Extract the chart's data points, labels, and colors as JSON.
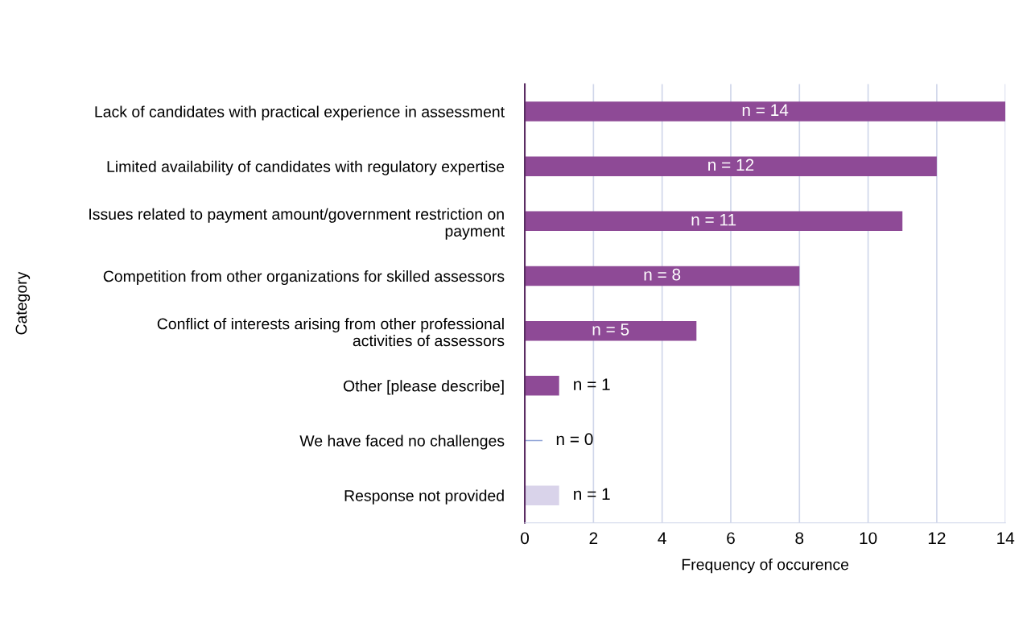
{
  "chart_data": {
    "type": "bar",
    "orientation": "horizontal",
    "xlabel": "Frequency of occurence",
    "ylabel": "Category",
    "categories": [
      "Lack of candidates with practical experience in assessment",
      "Limited availability of candidates with regulatory expertise",
      "Issues related to payment amount/government restriction on payment",
      "Competition from other organizations for skilled assessors",
      "Conflict of interests arising from other professional activities of assessors",
      "Other [please describe]",
      "We have faced no challenges",
      "Response not provided"
    ],
    "values": [
      14,
      12,
      11,
      8,
      5,
      1,
      0,
      1
    ],
    "colors": [
      "#8e4a96",
      "#8e4a96",
      "#8e4a96",
      "#8e4a96",
      "#8e4a96",
      "#8e4a96",
      "#8fa3d6",
      "#d9d3ea"
    ],
    "value_labels": [
      "n = 14",
      "n = 12",
      "n = 11",
      "n = 8",
      "n = 5",
      "n = 1",
      "n = 0",
      "n = 1"
    ],
    "xlim": [
      0,
      14
    ],
    "xticks": [
      0,
      2,
      4,
      6,
      8,
      10,
      12,
      14
    ],
    "grid": "x",
    "legend": false
  }
}
